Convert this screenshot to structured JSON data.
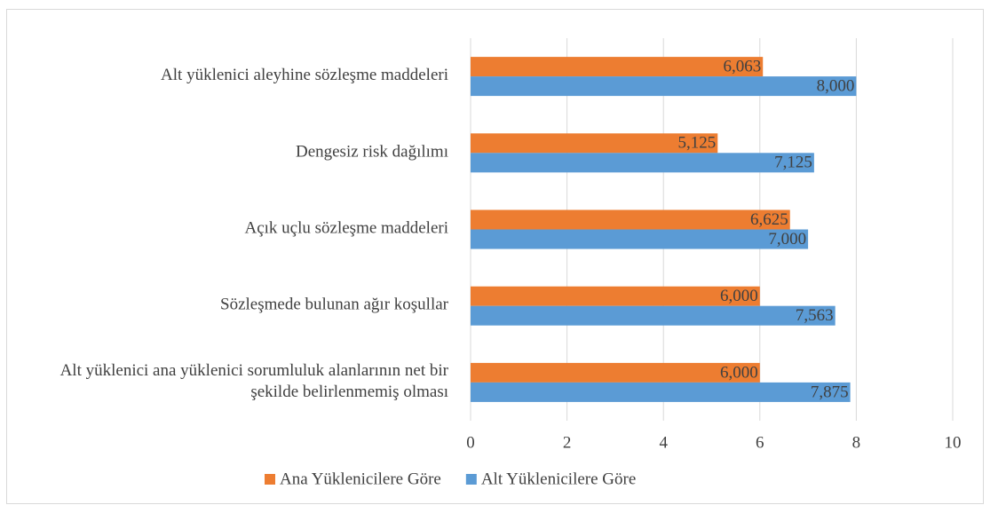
{
  "chart_data": {
    "type": "hbar",
    "categories": [
      "Alt yüklenici aleyhine sözleşme maddeleri",
      "Dengesiz risk dağılımı",
      "Açık uçlu sözleşme maddeleri",
      "Sözleşmede bulunan ağır koşullar",
      "Alt yüklenici ana yüklenici sorumluluk alanlarının net bir şekilde belirlenmemiş olması"
    ],
    "series": [
      {
        "name": "Ana Yüklenicilere Göre",
        "color": "#ed7d31",
        "values": [
          6.063,
          5.125,
          6.625,
          6.0,
          6.0
        ],
        "value_labels": [
          "6,063",
          "5,125",
          "6,625",
          "6,000",
          "6,000"
        ]
      },
      {
        "name": "Alt Yüklenicilere Göre",
        "color": "#5b9bd5",
        "values": [
          8.0,
          7.125,
          7.0,
          7.563,
          7.875
        ],
        "value_labels": [
          "8,000",
          "7,125",
          "7,000",
          "7,563",
          "7,875"
        ]
      }
    ],
    "xlim": [
      0,
      10
    ],
    "xticks": [
      0,
      2,
      4,
      6,
      8,
      10
    ],
    "grid": true,
    "legend": "bottom"
  }
}
